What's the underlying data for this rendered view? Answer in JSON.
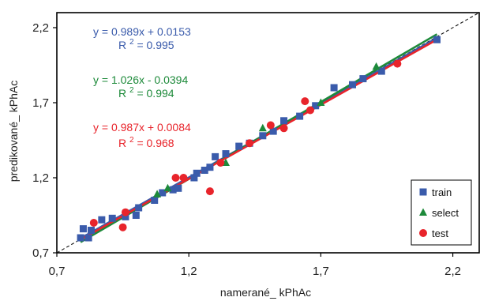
{
  "chart_data": {
    "type": "scatter",
    "xlabel": "namerané_ kPhAc",
    "ylabel": "predikované_ kPhAc",
    "xlim": [
      0.7,
      2.3
    ],
    "ylim": [
      0.7,
      2.3
    ],
    "x_ticks": [
      "0,7",
      "1,2",
      "1,7",
      "2,2"
    ],
    "y_ticks": [
      "0,7",
      "1,2",
      "1,7",
      "2,2"
    ],
    "x_tick_values": [
      0.7,
      1.2,
      1.7,
      2.2
    ],
    "y_tick_values": [
      0.7,
      1.2,
      1.7,
      2.2
    ],
    "grid": false,
    "legend_position": "bottom-right",
    "reference_line": {
      "style": "dashed",
      "slope": 1,
      "intercept": 0
    },
    "series": [
      {
        "name": "train",
        "marker": "square",
        "color": "#3a5bab",
        "points": [
          [
            0.79,
            0.8
          ],
          [
            0.8,
            0.86
          ],
          [
            0.82,
            0.8
          ],
          [
            0.83,
            0.85
          ],
          [
            0.87,
            0.92
          ],
          [
            0.91,
            0.93
          ],
          [
            0.96,
            0.94
          ],
          [
            1.0,
            0.95
          ],
          [
            1.01,
            1.0
          ],
          [
            1.07,
            1.05
          ],
          [
            1.1,
            1.1
          ],
          [
            1.14,
            1.12
          ],
          [
            1.16,
            1.13
          ],
          [
            1.22,
            1.2
          ],
          [
            1.23,
            1.23
          ],
          [
            1.26,
            1.25
          ],
          [
            1.28,
            1.27
          ],
          [
            1.3,
            1.34
          ],
          [
            1.34,
            1.36
          ],
          [
            1.39,
            1.41
          ],
          [
            1.43,
            1.43
          ],
          [
            1.48,
            1.48
          ],
          [
            1.52,
            1.51
          ],
          [
            1.56,
            1.58
          ],
          [
            1.62,
            1.61
          ],
          [
            1.68,
            1.68
          ],
          [
            1.75,
            1.8
          ],
          [
            1.82,
            1.82
          ],
          [
            1.86,
            1.86
          ],
          [
            1.93,
            1.91
          ],
          [
            2.14,
            2.12
          ]
        ]
      },
      {
        "name": "select",
        "marker": "triangle",
        "color": "#1d8a3a",
        "points": [
          [
            1.08,
            1.09
          ],
          [
            1.12,
            1.13
          ],
          [
            1.34,
            1.3
          ],
          [
            1.48,
            1.53
          ],
          [
            1.7,
            1.7
          ],
          [
            1.91,
            1.94
          ]
        ]
      },
      {
        "name": "test",
        "marker": "circle",
        "color": "#e8242b",
        "points": [
          [
            0.84,
            0.9
          ],
          [
            0.95,
            0.87
          ],
          [
            0.96,
            0.97
          ],
          [
            1.15,
            1.2
          ],
          [
            1.18,
            1.2
          ],
          [
            1.28,
            1.11
          ],
          [
            1.32,
            1.3
          ],
          [
            1.43,
            1.43
          ],
          [
            1.51,
            1.55
          ],
          [
            1.56,
            1.53
          ],
          [
            1.64,
            1.71
          ],
          [
            1.66,
            1.65
          ],
          [
            1.99,
            1.96
          ]
        ]
      }
    ],
    "fit_lines": [
      {
        "series": "train",
        "color": "#3a5bab",
        "slope": 0.989,
        "intercept": 0.0153,
        "x_range": [
          0.79,
          2.14
        ]
      },
      {
        "series": "select",
        "color": "#1d8a3a",
        "slope": 1.026,
        "intercept": -0.0394,
        "x_range": [
          0.79,
          2.14
        ]
      },
      {
        "series": "test",
        "color": "#e8242b",
        "slope": 0.987,
        "intercept": 0.0084,
        "x_range": [
          0.79,
          2.14
        ]
      }
    ],
    "annotations": [
      {
        "color": "#3a5bab",
        "equation": "y = 0.989x + 0.0153",
        "r2_label": "R",
        "r2_sup": "2",
        "r2_value": " = 0.995"
      },
      {
        "color": "#1d8a3a",
        "equation": "y = 1.026x - 0.0394",
        "r2_label": "R",
        "r2_sup": "2",
        "r2_value": " = 0.994"
      },
      {
        "color": "#e8242b",
        "equation": "y = 0.987x + 0.0084",
        "r2_label": "R",
        "r2_sup": "2",
        "r2_value": " = 0.968"
      }
    ]
  }
}
